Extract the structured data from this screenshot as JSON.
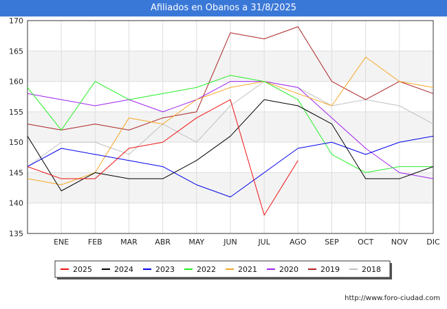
{
  "header": {
    "title": "Afiliados en Obanos a 31/8/2025"
  },
  "footer": {
    "source": "http://www.foro-ciudad.com"
  },
  "colors": {
    "background_band": "#f3f3f3",
    "gridline": "#dddddd",
    "axis": "#333333"
  },
  "chart_data": {
    "type": "line",
    "title": "Afiliados en Obanos a 31/8/2025",
    "xlabel": "",
    "ylabel": "",
    "categories": [
      "",
      "ENE",
      "FEB",
      "MAR",
      "ABR",
      "MAY",
      "JUN",
      "JUL",
      "AGO",
      "SEP",
      "OCT",
      "NOV",
      "DIC"
    ],
    "ylim": [
      135,
      170
    ],
    "yticks": [
      135,
      140,
      145,
      150,
      155,
      160,
      165,
      170
    ],
    "grid": true,
    "legend_position": "bottom",
    "series": [
      {
        "name": "2025",
        "color": "#ee1111",
        "values": [
          146,
          144,
          144,
          149,
          150,
          154,
          157,
          138,
          147,
          null,
          null,
          null,
          null
        ]
      },
      {
        "name": "2024",
        "color": "#000000",
        "values": [
          151,
          142,
          145,
          144,
          144,
          147,
          151,
          157,
          156,
          153,
          144,
          144,
          146
        ]
      },
      {
        "name": "2023",
        "color": "#0000ee",
        "values": [
          146,
          149,
          148,
          147,
          146,
          143,
          141,
          145,
          149,
          150,
          148,
          150,
          151
        ]
      },
      {
        "name": "2022",
        "color": "#22ee22",
        "values": [
          159,
          152,
          160,
          157,
          158,
          159,
          161,
          160,
          157,
          148,
          145,
          146,
          146
        ]
      },
      {
        "name": "2021",
        "color": "#f5a623",
        "values": [
          144,
          143,
          145,
          154,
          153,
          157,
          159,
          160,
          158,
          156,
          164,
          160,
          159
        ]
      },
      {
        "name": "2020",
        "color": "#a020f0",
        "values": [
          158,
          157,
          156,
          157,
          155,
          157,
          160,
          160,
          159,
          154,
          149,
          145,
          144
        ]
      },
      {
        "name": "2019",
        "color": "#aa2222",
        "values": [
          153,
          152,
          153,
          152,
          154,
          155,
          168,
          167,
          169,
          160,
          157,
          160,
          158
        ]
      },
      {
        "name": "2018",
        "color": "#c0c0c0",
        "values": [
          146,
          150,
          150,
          148,
          153,
          150,
          156,
          160,
          159,
          156,
          157,
          156,
          153
        ]
      }
    ]
  }
}
